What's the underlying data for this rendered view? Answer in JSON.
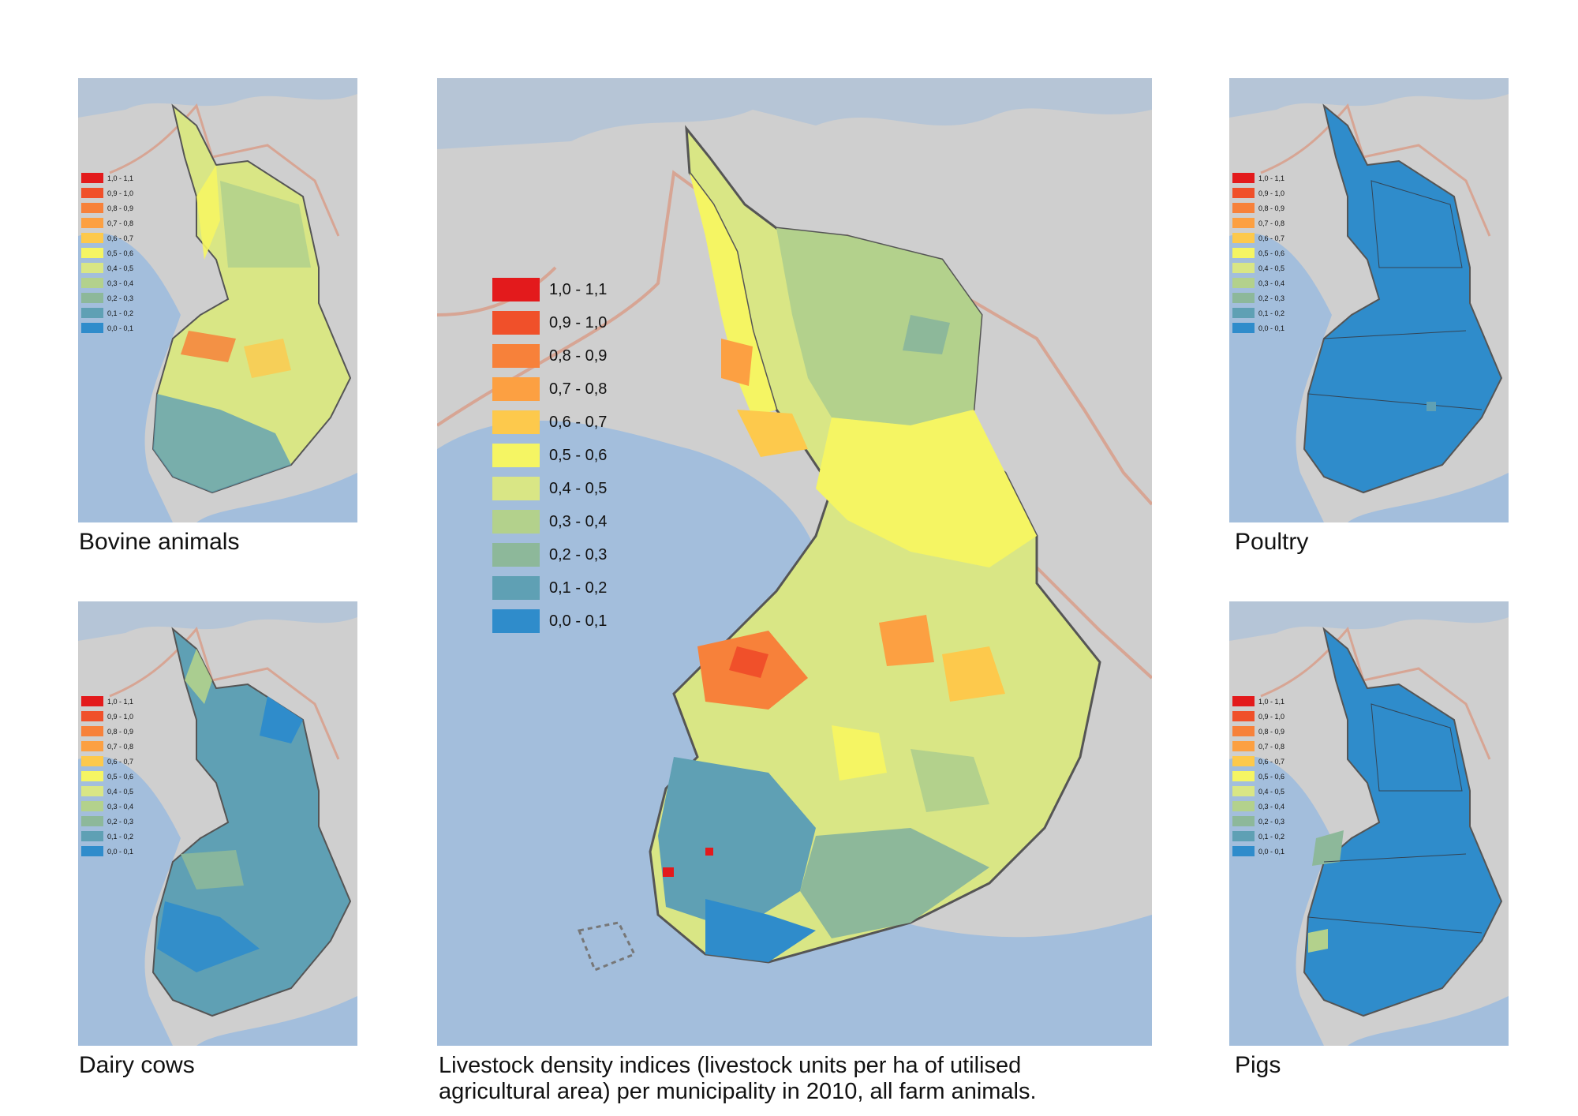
{
  "colors": {
    "land": "#cfcfcf",
    "sea": "#a3bedc",
    "border": "#d7a594",
    "outline": "#555555"
  },
  "legend": [
    {
      "label": "1,0 - 1,1",
      "color": "#e31a1c"
    },
    {
      "label": "0,9 - 1,0",
      "color": "#f0502a"
    },
    {
      "label": "0,8 - 0,9",
      "color": "#f7813a"
    },
    {
      "label": "0,7 - 0,8",
      "color": "#fca042"
    },
    {
      "label": "0,6 - 0,7",
      "color": "#fdc94c"
    },
    {
      "label": "0,5 - 0,6",
      "color": "#f5f563"
    },
    {
      "label": "0,4 - 0,5",
      "color": "#d9e685"
    },
    {
      "label": "0,3 - 0,4",
      "color": "#b3d18c"
    },
    {
      "label": "0,2 - 0,3",
      "color": "#8db89a"
    },
    {
      "label": "0,1 - 0,2",
      "color": "#5fa0b4"
    },
    {
      "label": "0,0 - 0,1",
      "color": "#2f8ccb"
    }
  ],
  "panels": {
    "bovine": {
      "caption": "Bovine animals",
      "fill": "#d9e685",
      "accent": "#5fa0b4"
    },
    "dairy": {
      "caption": "Dairy cows",
      "fill": "#5fa0b4",
      "accent": "#2f8ccb"
    },
    "poultry": {
      "caption": "Poultry",
      "fill": "#2f8ccb",
      "accent": "#2f8ccb"
    },
    "pigs": {
      "caption": "Pigs",
      "fill": "#2f8ccb",
      "accent": "#2f8ccb"
    },
    "main": {
      "caption_line1": "Livestock density indices (livestock units per ha of utilised",
      "caption_line2": "agricultural area) per municipality in 2010, all farm animals.",
      "fill": "#d9e685"
    }
  }
}
